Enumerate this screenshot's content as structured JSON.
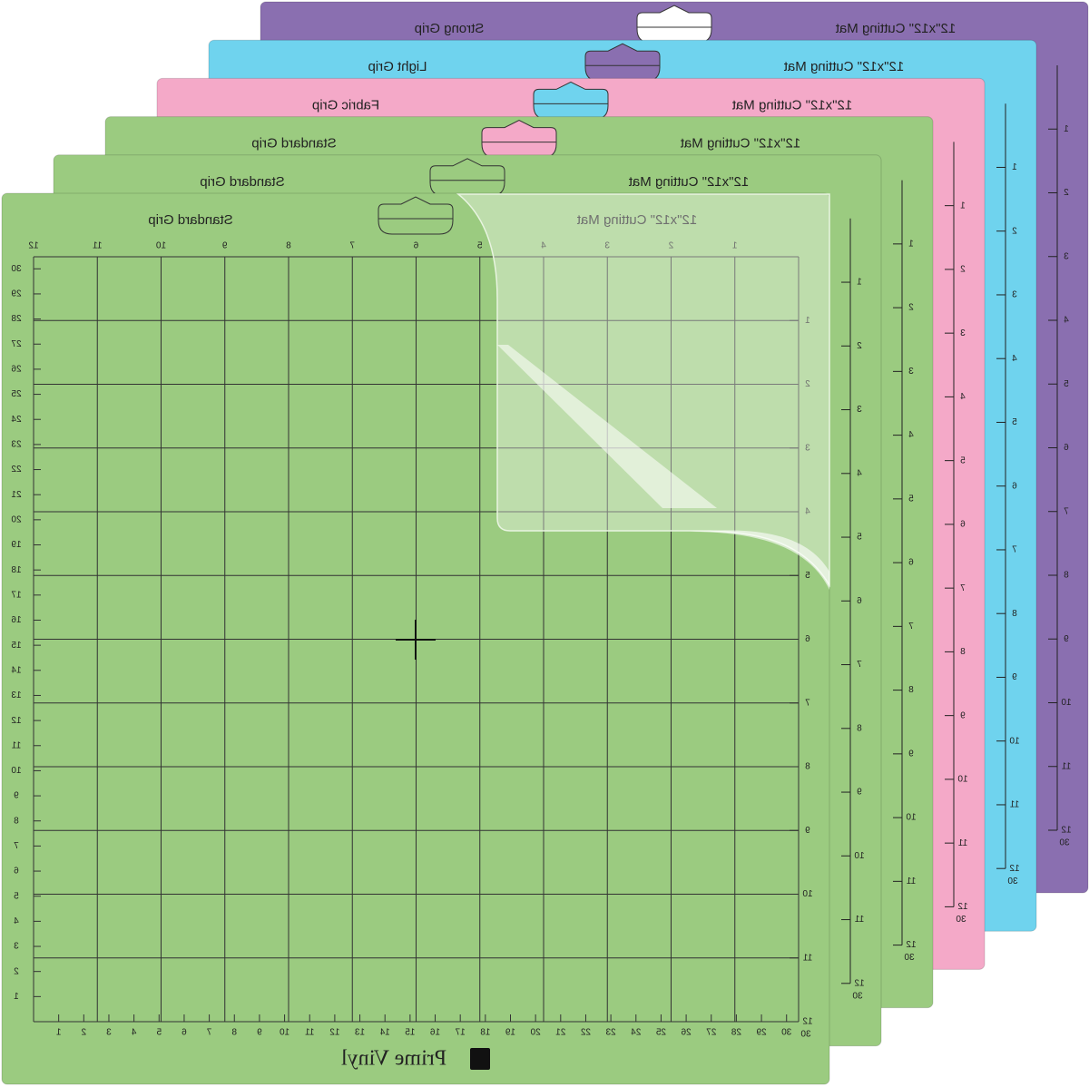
{
  "mats": [
    {
      "title": "12\"x12\" Cutting Mat",
      "grip": "Standard Grip",
      "color": "#9bcb80"
    },
    {
      "title": "12\"x12\" Cutting Mat",
      "grip": "Standard Grip",
      "color": "#9bcb80"
    },
    {
      "title": "12\"x12\" Cutting Mat",
      "grip": "Standard Grip",
      "color": "#9bcb80"
    },
    {
      "title": "12\"x12\" Cutting Mat",
      "grip": "Fabric Grip",
      "color": "#f4a9c8"
    },
    {
      "title": "12\"x12\" Cutting Mat",
      "grip": "Light Grip",
      "color": "#6fd3ee"
    },
    {
      "title": "12\"x12\" Cutting Mat",
      "grip": "Strong Grip",
      "color": "#8a6fb0"
    }
  ],
  "brand": "Prime Vinyl",
  "rulers": {
    "inches": [
      "1",
      "2",
      "3",
      "4",
      "5",
      "6",
      "7",
      "8",
      "9",
      "10",
      "11",
      "12"
    ],
    "cm": [
      "1",
      "2",
      "3",
      "4",
      "5",
      "6",
      "7",
      "8",
      "9",
      "10",
      "11",
      "12",
      "13",
      "14",
      "15",
      "16",
      "17",
      "18",
      "19",
      "20",
      "21",
      "22",
      "23",
      "24",
      "25",
      "26",
      "27",
      "28",
      "29",
      "30"
    ]
  }
}
